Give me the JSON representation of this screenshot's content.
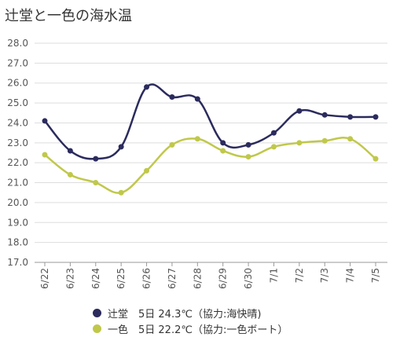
{
  "page": {
    "title": "辻堂と一色の海水温"
  },
  "chart_data": {
    "type": "line",
    "title": "辻堂と一色の海水温",
    "categories": [
      "6/22",
      "6/23",
      "6/24",
      "6/25",
      "6/26",
      "6/27",
      "6/28",
      "6/29",
      "6/30",
      "7/1",
      "7/2",
      "7/3",
      "7/4",
      "7/5"
    ],
    "ylim": [
      17.0,
      28.0
    ],
    "yticks": [
      "17.0",
      "18.0",
      "19.0",
      "20.0",
      "21.0",
      "22.0",
      "23.0",
      "24.0",
      "25.0",
      "26.0",
      "27.0",
      "28.0"
    ],
    "grid": true,
    "legend_position": "bottom",
    "series": [
      {
        "name": "辻堂　5日 24.3℃（協力:海快晴)",
        "color": "#2b2b5e",
        "values": [
          24.1,
          22.6,
          22.2,
          22.8,
          25.8,
          25.3,
          25.2,
          23.0,
          22.9,
          23.5,
          24.6,
          24.4,
          24.3,
          24.3
        ]
      },
      {
        "name": "一色　5日 22.2℃（協力:一色ボート）",
        "color": "#c0c84a",
        "values": [
          22.4,
          21.4,
          21.0,
          20.5,
          21.6,
          22.9,
          23.2,
          22.6,
          22.3,
          22.8,
          23.0,
          23.1,
          23.2,
          22.2
        ]
      }
    ]
  }
}
